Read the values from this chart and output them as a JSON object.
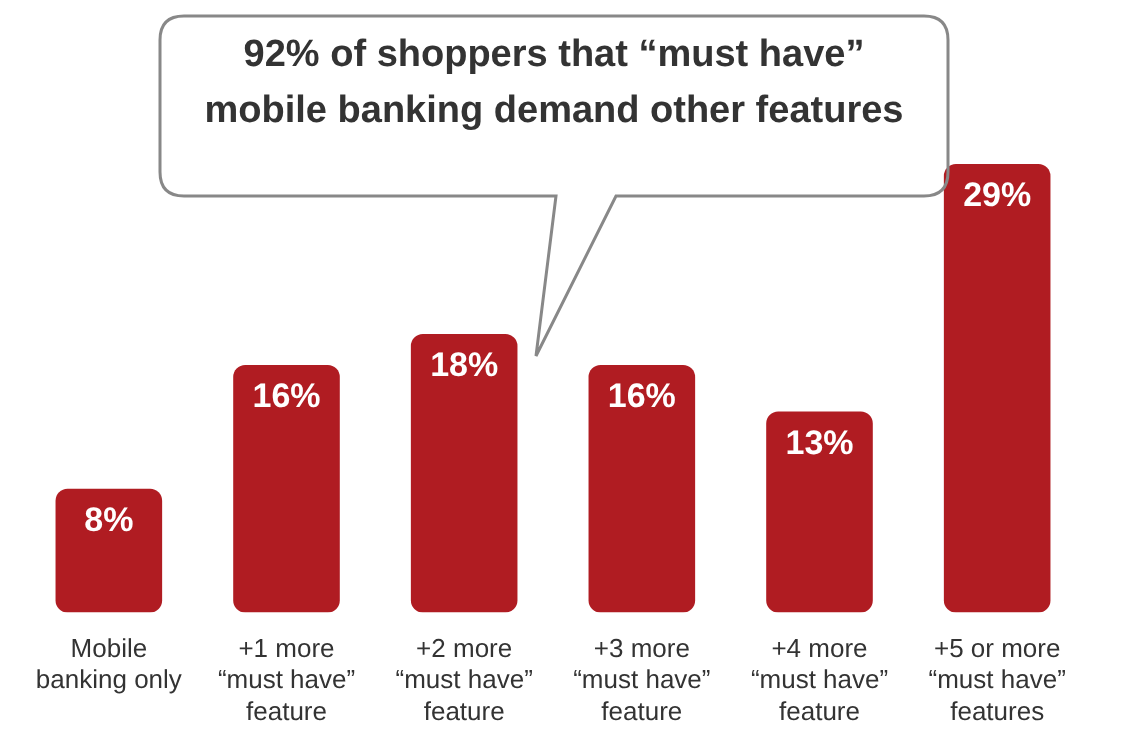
{
  "chart_data": {
    "type": "bar",
    "title": "92% of shoppers that “must have”\nmobile banking demand other features",
    "categories": [
      "Mobile\nbanking only",
      "+1 more\n“must have”\nfeature",
      "+2 more\n“must have”\nfeature",
      "+3 more\n“must have”\nfeature",
      "+4 more\n“must have”\nfeature",
      "+5 or more\n“must have”\nfeatures"
    ],
    "values": [
      8,
      16,
      18,
      16,
      13,
      29
    ],
    "color": "#b01c22",
    "data_labels": true,
    "value_labels": [
      "8%",
      "16%",
      "18%",
      "16%",
      "13%",
      "29%"
    ],
    "grid": false,
    "legend": false,
    "tick_labels": "x"
  }
}
